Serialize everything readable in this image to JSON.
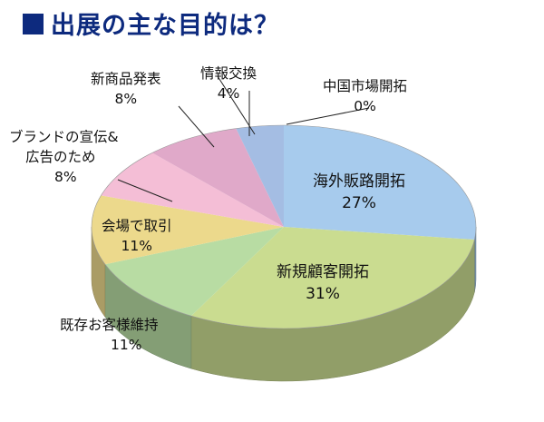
{
  "chart_data": {
    "type": "pie",
    "title": "出展の主な目的は？",
    "slices": [
      {
        "label": "海外販路開拓",
        "value": 27,
        "pct": "27%",
        "color": "#a7cbed"
      },
      {
        "label": "新規顧客開拓",
        "value": 31,
        "pct": "31%",
        "color": "#cadc90"
      },
      {
        "label": "既存お客様維持",
        "value": 11,
        "pct": "11%",
        "color": "#b8dca3"
      },
      {
        "label": "会場で取引",
        "value": 11,
        "pct": "11%",
        "color": "#ecd98c"
      },
      {
        "label": "ブランドの宣伝&広告のため",
        "label_line1": "ブランドの宣伝&",
        "label_line2": "広告のため",
        "value": 8,
        "pct": "8%",
        "color": "#f4bed6"
      },
      {
        "label": "新商品発表",
        "value": 8,
        "pct": "8%",
        "color": "#e0a9c9"
      },
      {
        "label": "情報交換",
        "value": 4,
        "pct": "4%",
        "color": "#a4bde3"
      },
      {
        "label": "中国市場開拓",
        "value": 0,
        "pct": "0%",
        "color": "#a7cbed"
      }
    ]
  }
}
